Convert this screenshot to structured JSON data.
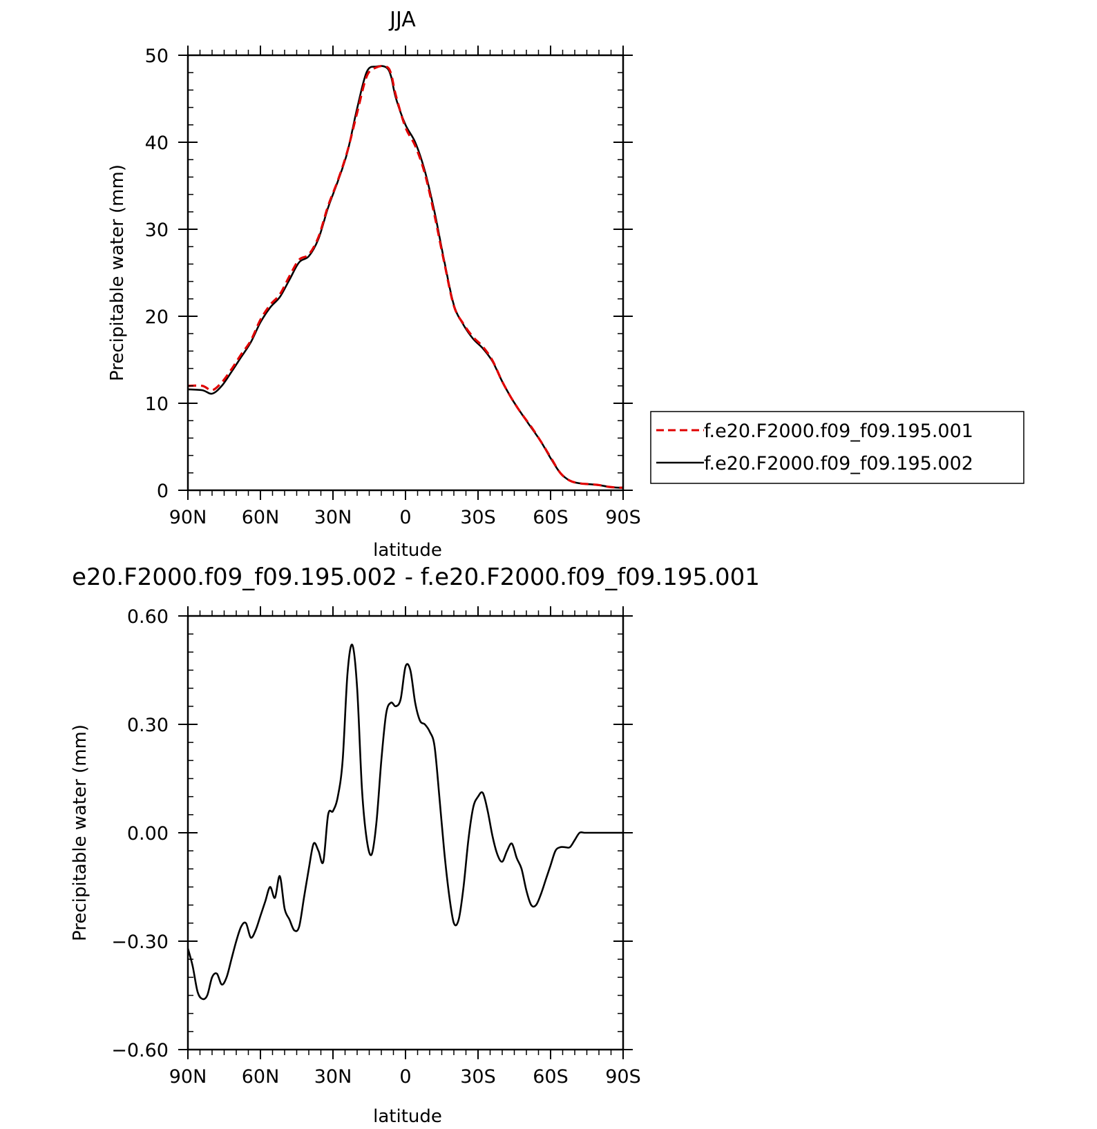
{
  "chart_data": [
    {
      "type": "line",
      "title": "JJA",
      "xlabel": "latitude",
      "ylabel": "Precipitable water (mm)",
      "xlim": [
        90,
        -90
      ],
      "ylim": [
        0,
        50
      ],
      "x_tick_values": [
        90,
        60,
        30,
        0,
        -30,
        -60,
        -90
      ],
      "x_tick_labels": [
        "90N",
        "60N",
        "30N",
        "0",
        "30S",
        "60S",
        "90S"
      ],
      "y_tick_values": [
        0,
        10,
        20,
        30,
        40,
        50
      ],
      "y_tick_labels": [
        "0",
        "10",
        "20",
        "30",
        "40",
        "50"
      ],
      "legend_position": "right",
      "series": [
        {
          "name": "f.e20.F2000.f09_f09.195.001",
          "color": "#e00000",
          "dash": "dashed",
          "x": [
            90,
            84,
            80,
            76,
            72,
            68,
            64,
            60,
            56,
            52,
            48,
            44,
            40,
            36,
            32,
            28,
            24,
            20,
            16,
            12,
            8,
            6,
            4,
            0,
            -4,
            -8,
            -12,
            -16,
            -20,
            -24,
            -28,
            -32,
            -36,
            -40,
            -44,
            -48,
            -52,
            -56,
            -60,
            -64,
            -68,
            -72,
            -76,
            -80,
            -84,
            -88,
            -90
          ],
          "y": [
            12.0,
            12.0,
            11.5,
            12.4,
            13.9,
            15.6,
            17.2,
            19.6,
            21.3,
            22.5,
            24.6,
            26.5,
            27.1,
            29.1,
            32.7,
            35.6,
            39.0,
            43.4,
            47.6,
            48.6,
            48.7,
            47.9,
            45.4,
            41.7,
            39.6,
            36.4,
            31.6,
            26.2,
            21.2,
            19.1,
            17.6,
            16.5,
            14.9,
            12.5,
            10.5,
            8.8,
            7.3,
            5.6,
            3.8,
            2.0,
            1.1,
            0.8,
            0.7,
            0.6,
            0.4,
            0.3,
            0.3
          ]
        },
        {
          "name": "f.e20.F2000.f09_f09.195.002",
          "color": "#000000",
          "dash": "solid",
          "x": [
            90,
            84,
            80,
            76,
            72,
            68,
            64,
            60,
            56,
            52,
            48,
            44,
            40,
            36,
            32,
            28,
            24,
            20,
            16,
            12,
            8,
            6,
            4,
            0,
            -4,
            -8,
            -12,
            -16,
            -20,
            -24,
            -28,
            -32,
            -36,
            -40,
            -44,
            -48,
            -52,
            -56,
            -60,
            -64,
            -68,
            -72,
            -76,
            -80,
            -84,
            -88,
            -90
          ],
          "y": [
            11.6,
            11.5,
            11.1,
            12.0,
            13.6,
            15.3,
            17.0,
            19.3,
            21.0,
            22.2,
            24.2,
            26.2,
            26.9,
            28.9,
            32.5,
            35.5,
            38.9,
            43.9,
            48.1,
            48.7,
            48.6,
            47.6,
            45.1,
            42.0,
            40.0,
            36.7,
            32.0,
            26.4,
            21.3,
            19.0,
            17.4,
            16.3,
            14.8,
            12.5,
            10.5,
            8.8,
            7.2,
            5.6,
            3.7,
            2.0,
            1.1,
            0.8,
            0.7,
            0.6,
            0.4,
            0.3,
            0.3
          ]
        }
      ]
    },
    {
      "type": "line",
      "title": "e20.F2000.f09_f09.195.002 - f.e20.F2000.f09_f09.195.001",
      "xlabel": "latitude",
      "ylabel": "Precipitable water (mm)",
      "xlim": [
        90,
        -90
      ],
      "ylim": [
        -0.6,
        0.6
      ],
      "x_tick_values": [
        90,
        60,
        30,
        0,
        -30,
        -60,
        -90
      ],
      "x_tick_labels": [
        "90N",
        "60N",
        "30N",
        "0",
        "30S",
        "60S",
        "90S"
      ],
      "y_tick_values": [
        -0.6,
        -0.3,
        0,
        0.3,
        0.6
      ],
      "y_tick_labels": [
        "−0.60",
        "−0.30",
        "0.00",
        "0.30",
        "0.60"
      ],
      "series": [
        {
          "color": "#000000",
          "dash": "solid",
          "x": [
            90,
            88,
            86,
            84,
            82,
            80,
            78,
            76,
            74,
            72,
            70,
            68,
            66,
            64,
            62,
            60,
            58,
            56,
            54,
            52,
            50,
            48,
            46,
            44,
            42,
            40,
            38,
            36,
            34,
            32,
            30,
            28,
            26,
            24,
            22,
            20,
            18,
            16,
            14,
            12,
            10,
            8,
            6,
            4,
            2,
            0,
            -2,
            -4,
            -6,
            -8,
            -10,
            -12,
            -14,
            -16,
            -18,
            -20,
            -22,
            -24,
            -26,
            -28,
            -30,
            -32,
            -34,
            -36,
            -38,
            -40,
            -42,
            -44,
            -46,
            -48,
            -50,
            -52,
            -54,
            -56,
            -58,
            -60,
            -62,
            -64,
            -66,
            -68,
            -70,
            -72,
            -74,
            -76,
            -78,
            -80,
            -82,
            -84,
            -86,
            -88,
            -90
          ],
          "y": [
            -0.32,
            -0.37,
            -0.44,
            -0.46,
            -0.45,
            -0.4,
            -0.39,
            -0.42,
            -0.4,
            -0.35,
            -0.3,
            -0.26,
            -0.25,
            -0.29,
            -0.27,
            -0.23,
            -0.19,
            -0.15,
            -0.18,
            -0.12,
            -0.21,
            -0.24,
            -0.27,
            -0.26,
            -0.18,
            -0.1,
            -0.03,
            -0.05,
            -0.08,
            0.05,
            0.06,
            0.1,
            0.2,
            0.44,
            0.52,
            0.4,
            0.12,
            -0.02,
            -0.06,
            0.03,
            0.2,
            0.33,
            0.36,
            0.35,
            0.37,
            0.46,
            0.45,
            0.36,
            0.31,
            0.3,
            0.28,
            0.24,
            0.1,
            -0.05,
            -0.17,
            -0.25,
            -0.24,
            -0.15,
            -0.02,
            0.07,
            0.1,
            0.11,
            0.06,
            -0.01,
            -0.06,
            -0.08,
            -0.05,
            -0.03,
            -0.07,
            -0.1,
            -0.16,
            -0.2,
            -0.2,
            -0.17,
            -0.13,
            -0.09,
            -0.05,
            -0.04,
            -0.04,
            -0.04,
            -0.02,
            0.0,
            0.0,
            0.0,
            0.0,
            0.0,
            0.0,
            0.0,
            0.0,
            0.0,
            0.0
          ]
        }
      ]
    }
  ]
}
